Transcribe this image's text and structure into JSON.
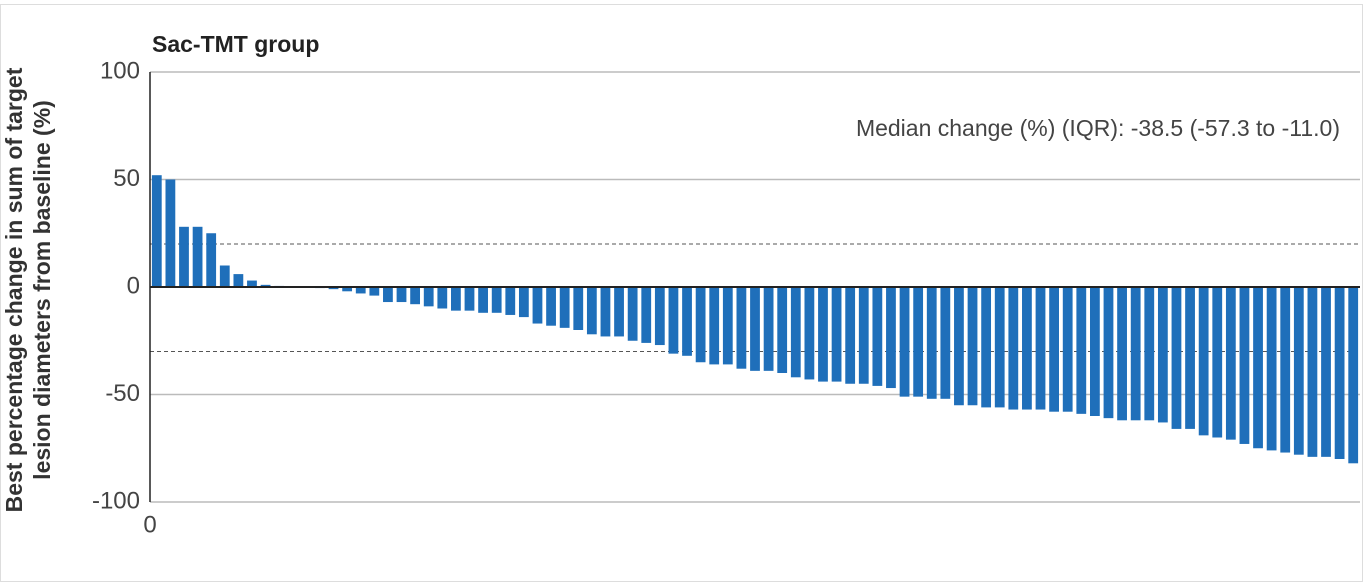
{
  "chart_data": {
    "type": "bar",
    "title": "Sac-TMT group",
    "y_label": [
      "Best percentage change in sum of target",
      "lesion diameters from baseline (%)"
    ],
    "annotation": "Median change (%) (IQR): -38.5 (-57.3 to -11.0)",
    "categories": [
      null,
      null,
      null,
      null,
      null,
      null,
      null,
      null,
      null,
      null,
      null,
      null,
      null,
      null,
      null,
      null,
      null,
      null,
      null,
      null,
      null,
      null,
      null,
      null,
      null,
      null,
      null,
      null,
      null,
      null,
      null,
      null,
      null,
      null,
      null,
      null,
      null,
      null,
      null,
      null,
      null,
      null,
      null,
      null,
      null,
      null,
      null,
      null,
      null,
      null,
      null,
      null,
      null,
      null,
      null,
      null,
      null,
      null,
      null,
      null,
      null,
      null,
      null,
      null,
      null,
      null,
      null,
      null,
      null,
      null,
      null,
      null,
      null,
      null,
      null,
      null,
      null,
      null,
      null,
      null,
      null,
      null,
      null,
      null,
      null,
      null,
      null,
      null,
      null
    ],
    "values": [
      52,
      50,
      28,
      28,
      25,
      10,
      6,
      3,
      1,
      0.5,
      0.3,
      0.2,
      -0.5,
      -1,
      -2,
      -3,
      -4,
      -7,
      -7,
      -8,
      -9,
      -10,
      -11,
      -11,
      -12,
      -12,
      -13,
      -14,
      -17,
      -18,
      -19,
      -20,
      -22,
      -23,
      -23,
      -25,
      -26,
      -27,
      -31,
      -32,
      -35,
      -36,
      -36,
      -38,
      -39,
      -39,
      -40,
      -42,
      -43,
      -44,
      -44,
      -45,
      -45,
      -46,
      -47,
      -51,
      -51,
      -52,
      -52,
      -55,
      -55,
      -56,
      -56,
      -57,
      -57,
      -57,
      -58,
      -58,
      -59,
      -60,
      -61,
      -62,
      -62,
      -62,
      -63,
      -66,
      -66,
      -69,
      -70,
      -71,
      -73,
      -75,
      -76,
      -77,
      -78,
      -79,
      -79,
      -80,
      -82
    ],
    "color": "#1f6fba",
    "ylim": [
      -100,
      100
    ],
    "yticks": [
      -100,
      -50,
      0,
      50,
      100
    ],
    "xlim": [
      0,
      89
    ],
    "xticks": [
      0
    ],
    "reference_lines": [
      20,
      -30
    ],
    "grid": true
  }
}
